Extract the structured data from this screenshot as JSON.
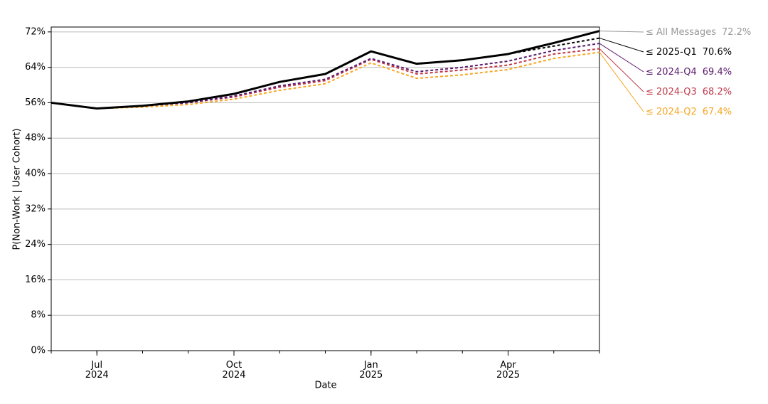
{
  "chart_data": {
    "type": "line",
    "x_label": "Date",
    "y_label": "P(Non-Work | User Cohort)",
    "x": [
      "2024-06",
      "2024-07",
      "2024-08",
      "2024-09",
      "2024-10",
      "2024-11",
      "2024-12",
      "2025-01",
      "2025-02",
      "2025-03",
      "2025-04",
      "2025-05",
      "2025-06"
    ],
    "xlim": [
      "2024-06",
      "2025-06"
    ],
    "xticks": [
      {
        "value": "2024-07",
        "label": "Jul 2024"
      },
      {
        "value": "2024-10",
        "label": "Oct 2024"
      },
      {
        "value": "2025-01",
        "label": "Jan 2025"
      },
      {
        "value": "2025-04",
        "label": "Apr 2025"
      }
    ],
    "ylim": [
      0,
      73.1
    ],
    "yticks": [
      {
        "value": 0,
        "label": "0%"
      },
      {
        "value": 8,
        "label": "8%"
      },
      {
        "value": 16,
        "label": "16%"
      },
      {
        "value": 24,
        "label": "24%"
      },
      {
        "value": 32,
        "label": "32%"
      },
      {
        "value": 40,
        "label": "40%"
      },
      {
        "value": 48,
        "label": "48%"
      },
      {
        "value": 56,
        "label": "56%"
      },
      {
        "value": 64,
        "label": "64%"
      },
      {
        "value": 72,
        "label": "72%"
      }
    ],
    "grid": true,
    "series": [
      {
        "name": "≤ 2024-Q2",
        "color": "#f5a623",
        "label_color": "#f5a623",
        "dash": true,
        "values": [
          56.0,
          54.7,
          55.0,
          55.6,
          56.8,
          58.8,
          60.3,
          65.0,
          61.5,
          62.3,
          63.5,
          66.0,
          67.4
        ],
        "value_labels": [
          null,
          null,
          null,
          null,
          null,
          null,
          null,
          null,
          null,
          null,
          null,
          null,
          "67.4%"
        ]
      },
      {
        "name": "≤ 2024-Q3",
        "color": "#c0394a",
        "label_color": "#c0394a",
        "dash": true,
        "values": [
          56.0,
          54.7,
          55.3,
          56.0,
          57.3,
          59.5,
          61.0,
          65.8,
          62.5,
          63.4,
          64.5,
          67.0,
          68.2
        ],
        "value_labels": [
          null,
          null,
          null,
          null,
          null,
          null,
          null,
          null,
          null,
          null,
          null,
          null,
          "68.2%"
        ]
      },
      {
        "name": "≤ 2024-Q4",
        "color": "#5b1a6e",
        "label_color": "#5b1a6e",
        "dash": true,
        "values": [
          56.0,
          54.7,
          55.3,
          56.0,
          57.5,
          59.8,
          61.3,
          66.0,
          63.0,
          64.0,
          65.4,
          67.8,
          69.4
        ],
        "value_labels": [
          null,
          null,
          null,
          null,
          null,
          null,
          null,
          null,
          null,
          null,
          null,
          null,
          "69.4%"
        ]
      },
      {
        "name": "≤ 2025-Q1",
        "color": "#000000",
        "label_color": "#000000",
        "dash": true,
        "values": [
          56.0,
          54.7,
          55.3,
          56.3,
          58.0,
          60.7,
          62.5,
          67.6,
          64.8,
          65.6,
          67.0,
          68.8,
          70.6
        ],
        "value_labels": [
          null,
          null,
          null,
          null,
          null,
          null,
          null,
          null,
          null,
          null,
          null,
          null,
          "70.6%"
        ]
      },
      {
        "name": "≤ All Messages",
        "color": "#000000",
        "label_color": "#999999",
        "dash": false,
        "values": [
          56.0,
          54.7,
          55.3,
          56.3,
          58.0,
          60.7,
          62.5,
          67.6,
          64.8,
          65.6,
          67.0,
          69.5,
          72.2
        ],
        "value_labels": [
          null,
          null,
          null,
          null,
          null,
          null,
          null,
          null,
          null,
          null,
          null,
          null,
          "72.2%"
        ]
      }
    ]
  }
}
